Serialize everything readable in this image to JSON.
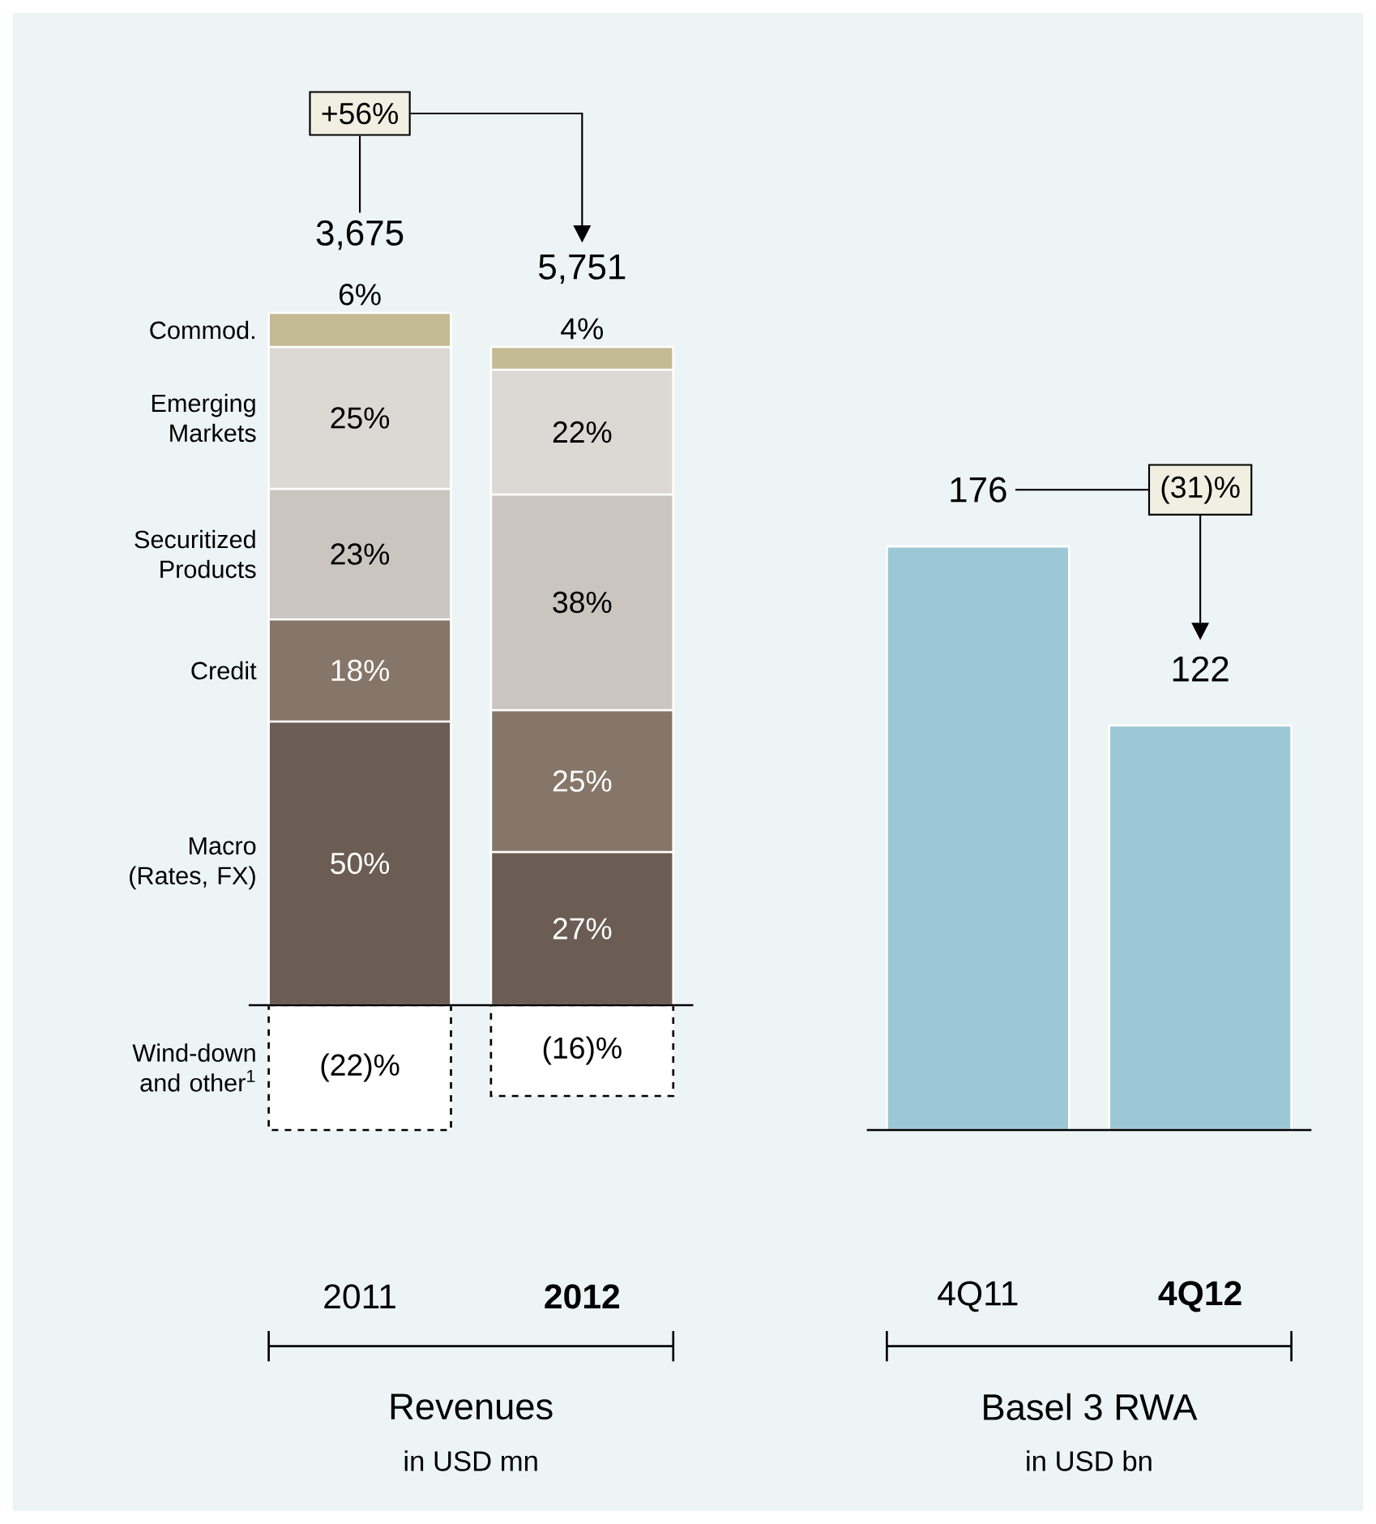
{
  "chart_data": [
    {
      "type": "bar",
      "stacked": true,
      "xlabel": "Revenues",
      "subtitle": "in USD mn",
      "categories": [
        "2011",
        "2012"
      ],
      "series": [
        {
          "name": "Wind-down and other$^{1}$",
          "color": "#ffffff",
          "line_style": "dashed",
          "values": [
            -22,
            -16
          ],
          "value_labels": [
            "(22)%",
            "(16)%"
          ]
        },
        {
          "name": "Macro (Rates, FX)",
          "color": "#6b5d54",
          "values": [
            50,
            27
          ],
          "value_labels": [
            "50%",
            "27%"
          ]
        },
        {
          "name": "Credit",
          "color": "#857669",
          "values": [
            18,
            25
          ],
          "value_labels": [
            "18%",
            "25%"
          ]
        },
        {
          "name": "Securitized Products",
          "color": "#cbc5c0",
          "values": [
            23,
            38
          ],
          "value_labels": [
            "23%",
            "38%"
          ]
        },
        {
          "name": "Emerging Markets",
          "color": "#dcd8d4",
          "values": [
            25,
            22
          ],
          "value_labels": [
            "25%",
            "22%"
          ]
        },
        {
          "name": "Commod.",
          "color": "#c4bb94",
          "values": [
            6,
            4
          ],
          "value_labels": [
            "6%",
            "4%"
          ]
        }
      ],
      "ylim": [
        -22,
        122
      ],
      "tick_labels": "x",
      "annotations": [
        "3,675",
        "5,751",
        "+56%"
      ]
    },
    {
      "type": "bar",
      "xlabel": "Basel 3 RWA",
      "subtitle": "in USD bn",
      "categories": [
        "4Q11",
        "4Q12"
      ],
      "values": [
        176,
        122
      ],
      "color": "#9cc8d6",
      "ylim": [
        0,
        200
      ],
      "data_labels": true,
      "tick_labels": "x",
      "annotations": [
        "(31)%"
      ]
    }
  ]
}
